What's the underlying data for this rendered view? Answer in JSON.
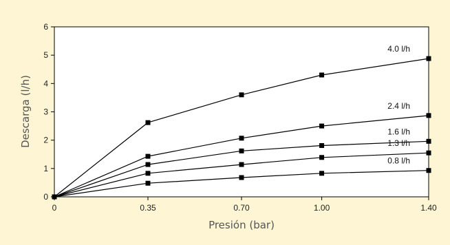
{
  "chart_data": {
    "type": "line",
    "title": "",
    "xlabel": "Presión (bar)",
    "ylabel": "Descarga (l/h)",
    "x": [
      0,
      0.35,
      0.7,
      1.0,
      1.4
    ],
    "x_tick_labels": [
      "0",
      "0.35",
      "0.70",
      "1.00",
      "1.40"
    ],
    "y_ticks": [
      "0",
      "1",
      "2",
      "3",
      "4",
      "5",
      "6"
    ],
    "ylim": [
      0,
      6
    ],
    "grid": false,
    "legend": "none",
    "series": [
      {
        "name": "4.0 l/h",
        "values": [
          0,
          2.62,
          3.6,
          4.3,
          4.88
        ]
      },
      {
        "name": "2.4 l/h",
        "values": [
          0,
          1.43,
          2.07,
          2.5,
          2.87
        ]
      },
      {
        "name": "1.6 l/h",
        "values": [
          0,
          1.14,
          1.62,
          1.81,
          1.96
        ]
      },
      {
        "name": "1.3 l/h",
        "values": [
          0,
          0.83,
          1.14,
          1.39,
          1.55
        ]
      },
      {
        "name": "0.8 l/h",
        "values": [
          0,
          0.48,
          0.68,
          0.83,
          0.93
        ]
      }
    ],
    "colors": {
      "background": "#fdf5d3",
      "plot_area": "#ffffff",
      "line": "#000000",
      "axis_label": "#555555"
    }
  }
}
